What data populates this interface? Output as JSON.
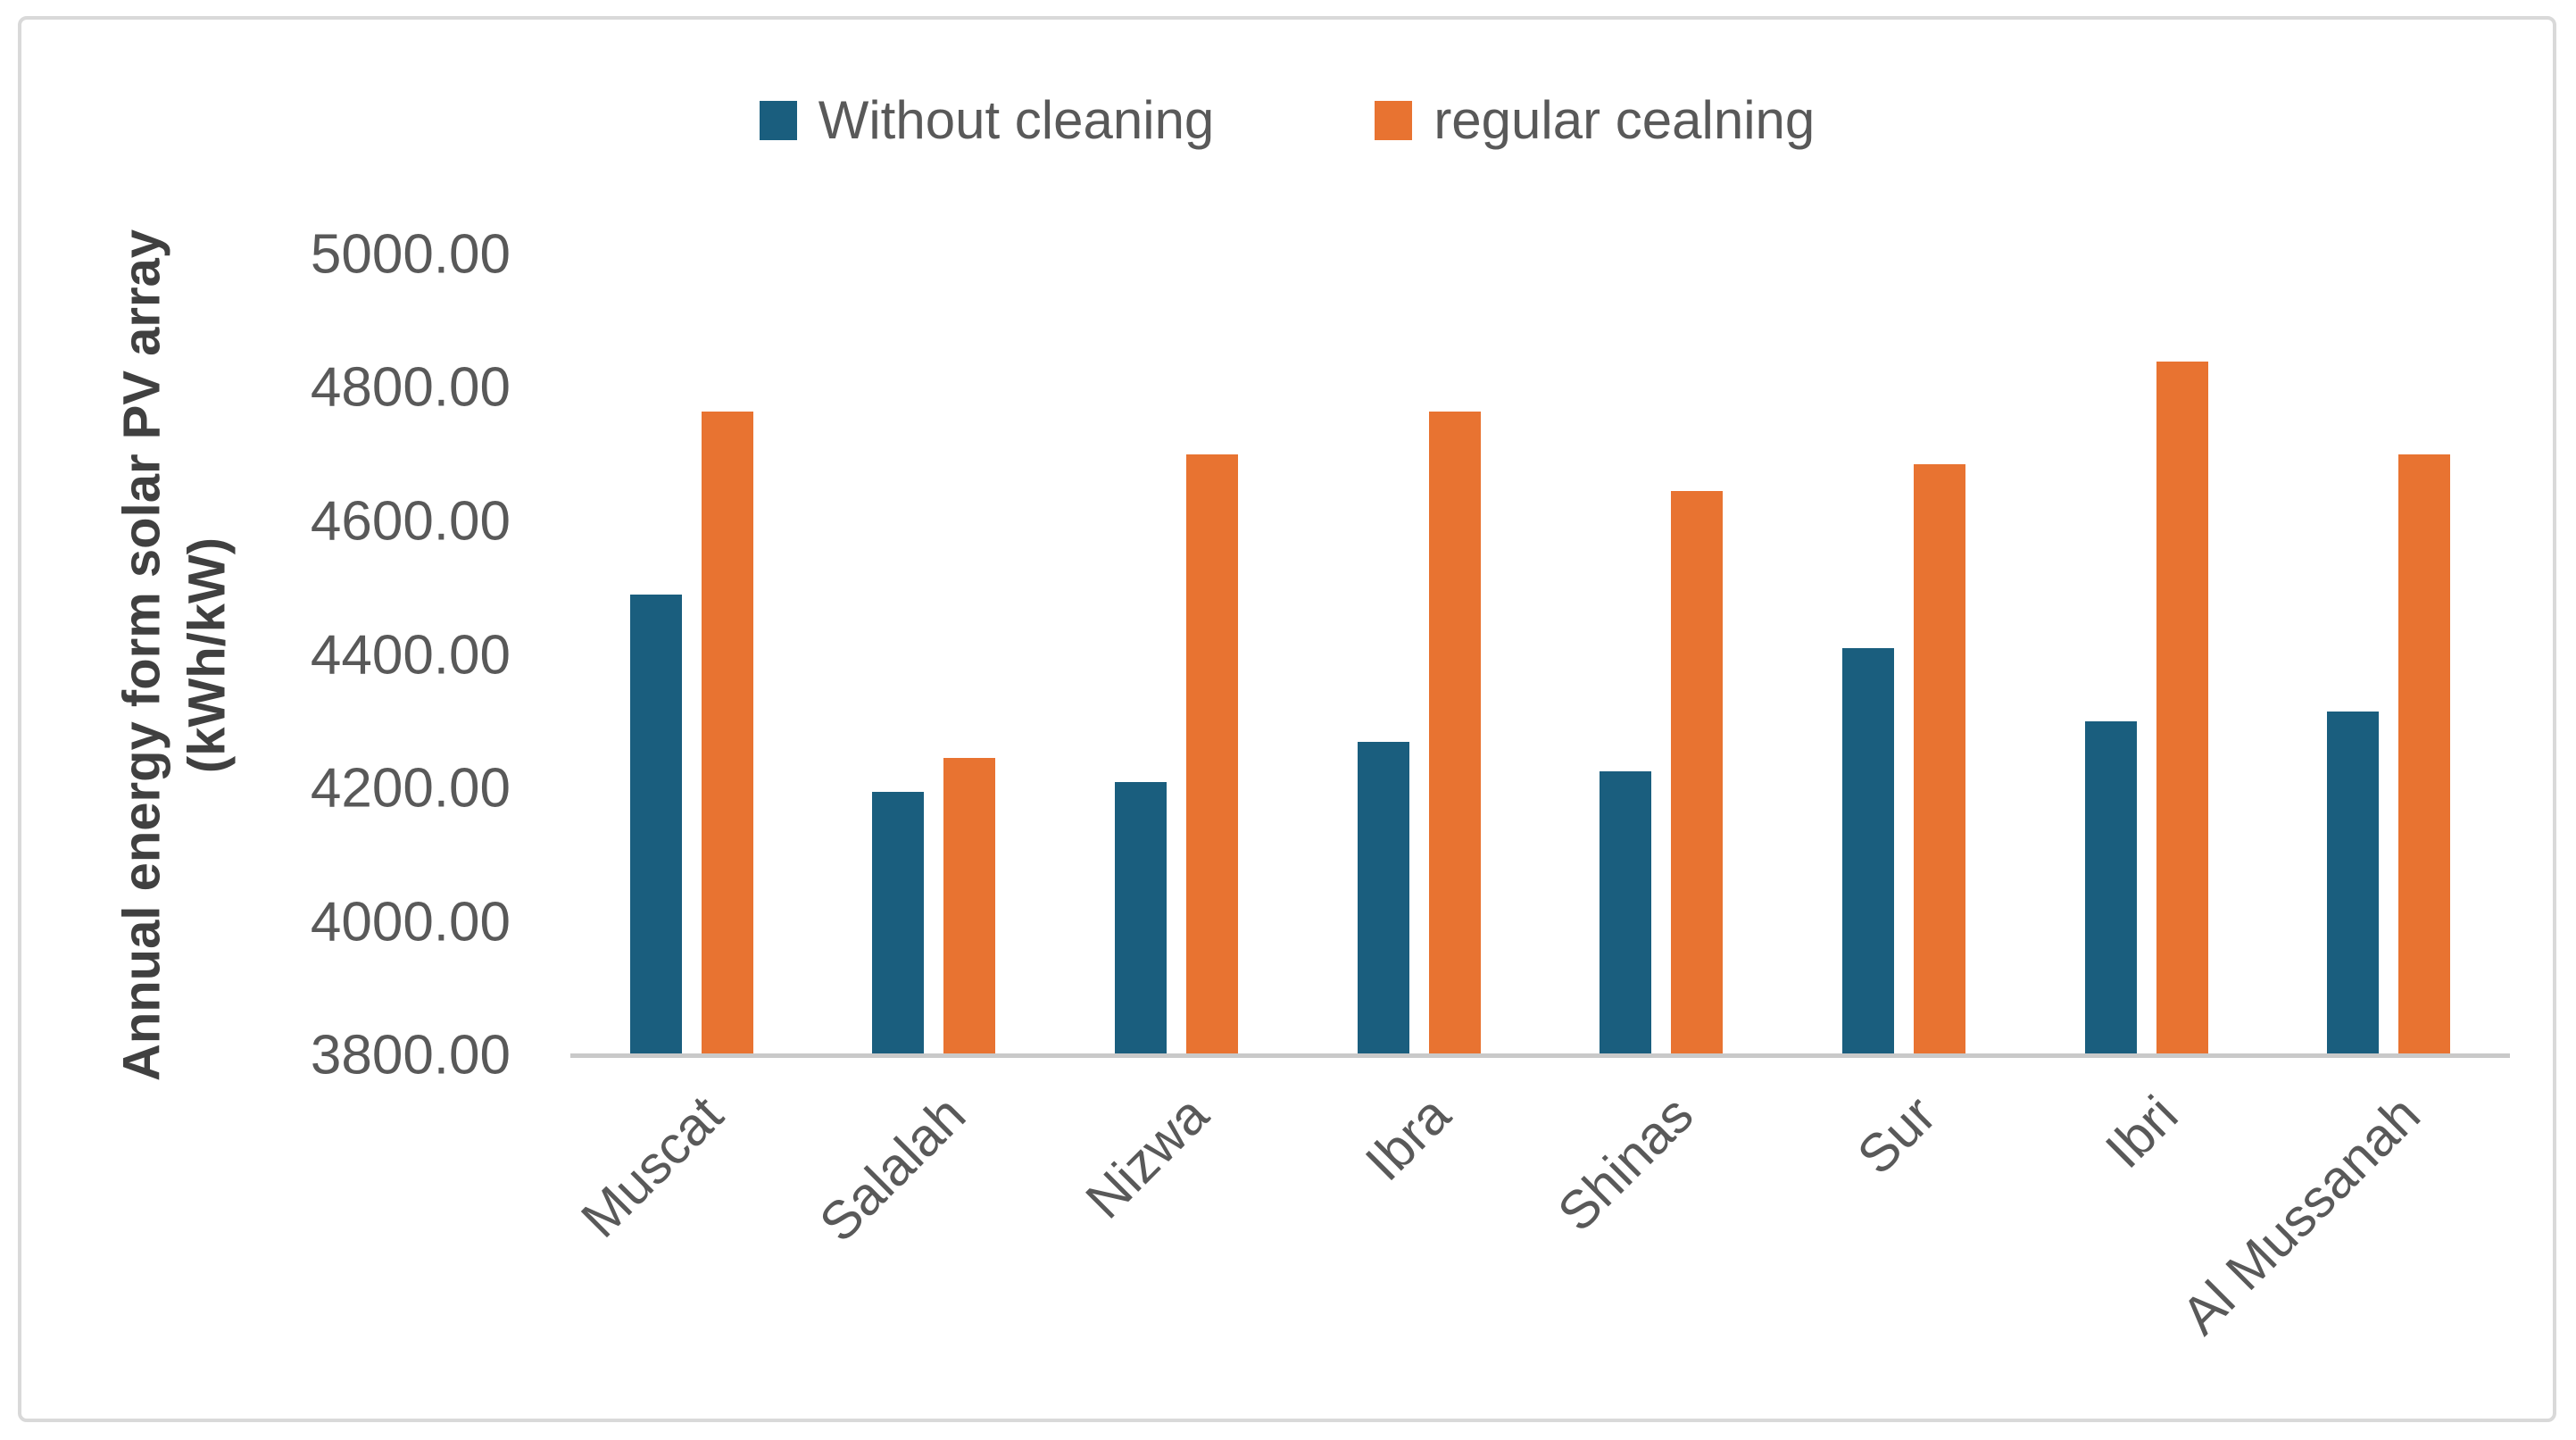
{
  "legend": {
    "items": [
      {
        "label": "Without cleaning",
        "color": "#1A5E7E"
      },
      {
        "label": "regular cealning",
        "color": "#E87331"
      }
    ]
  },
  "y_axis": {
    "title_line1": "Annual energy form solar PV array",
    "title_line2": "(kWh/kW)",
    "tick_labels": [
      "5000.00",
      "4800.00",
      "4600.00",
      "4400.00",
      "4200.00",
      "4000.00",
      "3800.00"
    ]
  },
  "chart_data": {
    "type": "bar",
    "title": "",
    "categories": [
      "Muscat",
      "Salalah",
      "Nizwa",
      "Ibra",
      "Shinas",
      "Sur",
      "Ibri",
      "Al Mussanah"
    ],
    "series": [
      {
        "name": "Without cleaning",
        "color": "#1A5E7E",
        "values": [
          4490,
          4195,
          4210,
          4270,
          4225,
          4410,
          4300,
          4315
        ]
      },
      {
        "name": "regular cealning",
        "color": "#E87331",
        "values": [
          4765,
          4245,
          4700,
          4765,
          4645,
          4685,
          4840,
          4700
        ]
      }
    ],
    "xlabel": "",
    "ylabel": "Annual energy form solar PV array (kWh/kW)",
    "ylim": [
      3800,
      5000
    ],
    "ytick_step": 200,
    "ytick_decimals": 2,
    "grid": false,
    "legend_position": "top",
    "axis_color": "#c9c9c9",
    "text_color": "#595959"
  }
}
